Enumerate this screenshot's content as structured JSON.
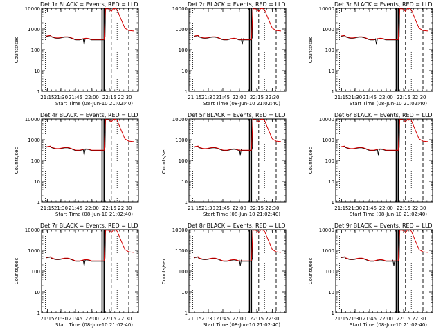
{
  "colors": {
    "events": "#000000",
    "lld": "#d40000",
    "background": "#ffffff"
  },
  "chart_data": [
    {
      "type": "line",
      "title": "Det 1r BLACK = Events, RED = LLD",
      "xlabel": "Start Time (08-Jun-10 21:02:40)",
      "ylabel": "Counts/sec",
      "yscale": "log",
      "ylim": [
        1,
        10000
      ],
      "xtick_labels": [
        "21:15",
        "21:30",
        "21:45",
        "22:00",
        "22:15",
        "22:30"
      ],
      "yticks": [
        "1",
        "10",
        "100",
        "1000",
        "10000"
      ]
    },
    {
      "type": "line",
      "title": "Det 2r BLACK = Events, RED = LLD",
      "xlabel": "Start Time (08-Jun-10 21:02:40)",
      "ylabel": "",
      "yscale": "log",
      "ylim": [
        1,
        10000
      ],
      "xtick_labels": [
        "21:15",
        "21:30",
        "21:45",
        "22:00",
        "22:15",
        "22:30"
      ],
      "yticks": [
        "1",
        "10",
        "100",
        "1000",
        "10000"
      ]
    },
    {
      "type": "line",
      "title": "Det 3r BLACK = Events, RED = LLD",
      "xlabel": "Start Time (08-Jun-10 21:02:40)",
      "ylabel": "Counts/sec",
      "yscale": "log",
      "ylim": [
        1,
        10000
      ],
      "xtick_labels": [
        "21:15",
        "21:30",
        "21:45",
        "22:00",
        "22:15",
        "22:30"
      ],
      "yticks": [
        "1",
        "10",
        "100",
        "1000",
        "10000"
      ]
    },
    {
      "type": "line",
      "title": "Det 4r BLACK = Events, RED = LLD",
      "xlabel": "Start Time (08-Jun-10 21:02:40)",
      "ylabel": "Counts/sec",
      "yscale": "log",
      "ylim": [
        1,
        10000
      ],
      "xtick_labels": [
        "21:15",
        "21:30",
        "21:45",
        "22:00",
        "22:15",
        "22:30"
      ],
      "yticks": [
        "1",
        "10",
        "100",
        "1000",
        "10000"
      ]
    },
    {
      "type": "line",
      "title": "Det 5r BLACK = Events, RED = LLD",
      "xlabel": "Start Time (08-Jun-10 21:02:40)",
      "ylabel": "Counts/sec",
      "yscale": "log",
      "ylim": [
        1,
        10000
      ],
      "xtick_labels": [
        "21:15",
        "21:30",
        "21:45",
        "22:00",
        "22:15",
        "22:30"
      ],
      "yticks": [
        "1",
        "10",
        "100",
        "1000",
        "10000"
      ]
    },
    {
      "type": "line",
      "title": "Det 6r BLACK = Events, RED = LLD",
      "xlabel": "Start Time (08-Jun-10 21:02:40)",
      "ylabel": "Counts/sec",
      "yscale": "log",
      "ylim": [
        1,
        10000
      ],
      "xtick_labels": [
        "21:15",
        "21:30",
        "21:45",
        "22:00",
        "22:15",
        "22:30"
      ],
      "yticks": [
        "1",
        "10",
        "100",
        "1000",
        "10000"
      ]
    },
    {
      "type": "line",
      "title": "Det 7r BLACK = Events, RED = LLD",
      "xlabel": "Start Time (08-Jun-10 21:02:40)",
      "ylabel": "Counts/sec",
      "yscale": "log",
      "ylim": [
        1,
        10000
      ],
      "xtick_labels": [
        "21:15",
        "21:30",
        "21:45",
        "22:00",
        "22:15",
        "22:30"
      ],
      "yticks": [
        "1",
        "10",
        "100",
        "1000",
        "10000"
      ]
    },
    {
      "type": "line",
      "title": "Det 8r BLACK = Events, RED = LLD",
      "xlabel": "Start Time (08-Jun-10 21:02:40)",
      "ylabel": "Counts/sec",
      "yscale": "log",
      "ylim": [
        1,
        10000
      ],
      "xtick_labels": [
        "21:15",
        "21:30",
        "21:45",
        "22:00",
        "22:15",
        "22:30"
      ],
      "yticks": [
        "1",
        "10",
        "100",
        "1000",
        "10000"
      ]
    },
    {
      "type": "line",
      "title": "Det 9r BLACK = Events, RED = LLD",
      "xlabel": "Start Time (08-Jun-10 21:02:40)",
      "ylabel": "Counts/sec",
      "yscale": "log",
      "ylim": [
        1,
        10000
      ],
      "xtick_labels": [
        "21:15",
        "21:30",
        "21:45",
        "22:00",
        "22:15",
        "22:30"
      ],
      "yticks": [
        "1",
        "10",
        "100",
        "1000",
        "10000"
      ]
    }
  ]
}
